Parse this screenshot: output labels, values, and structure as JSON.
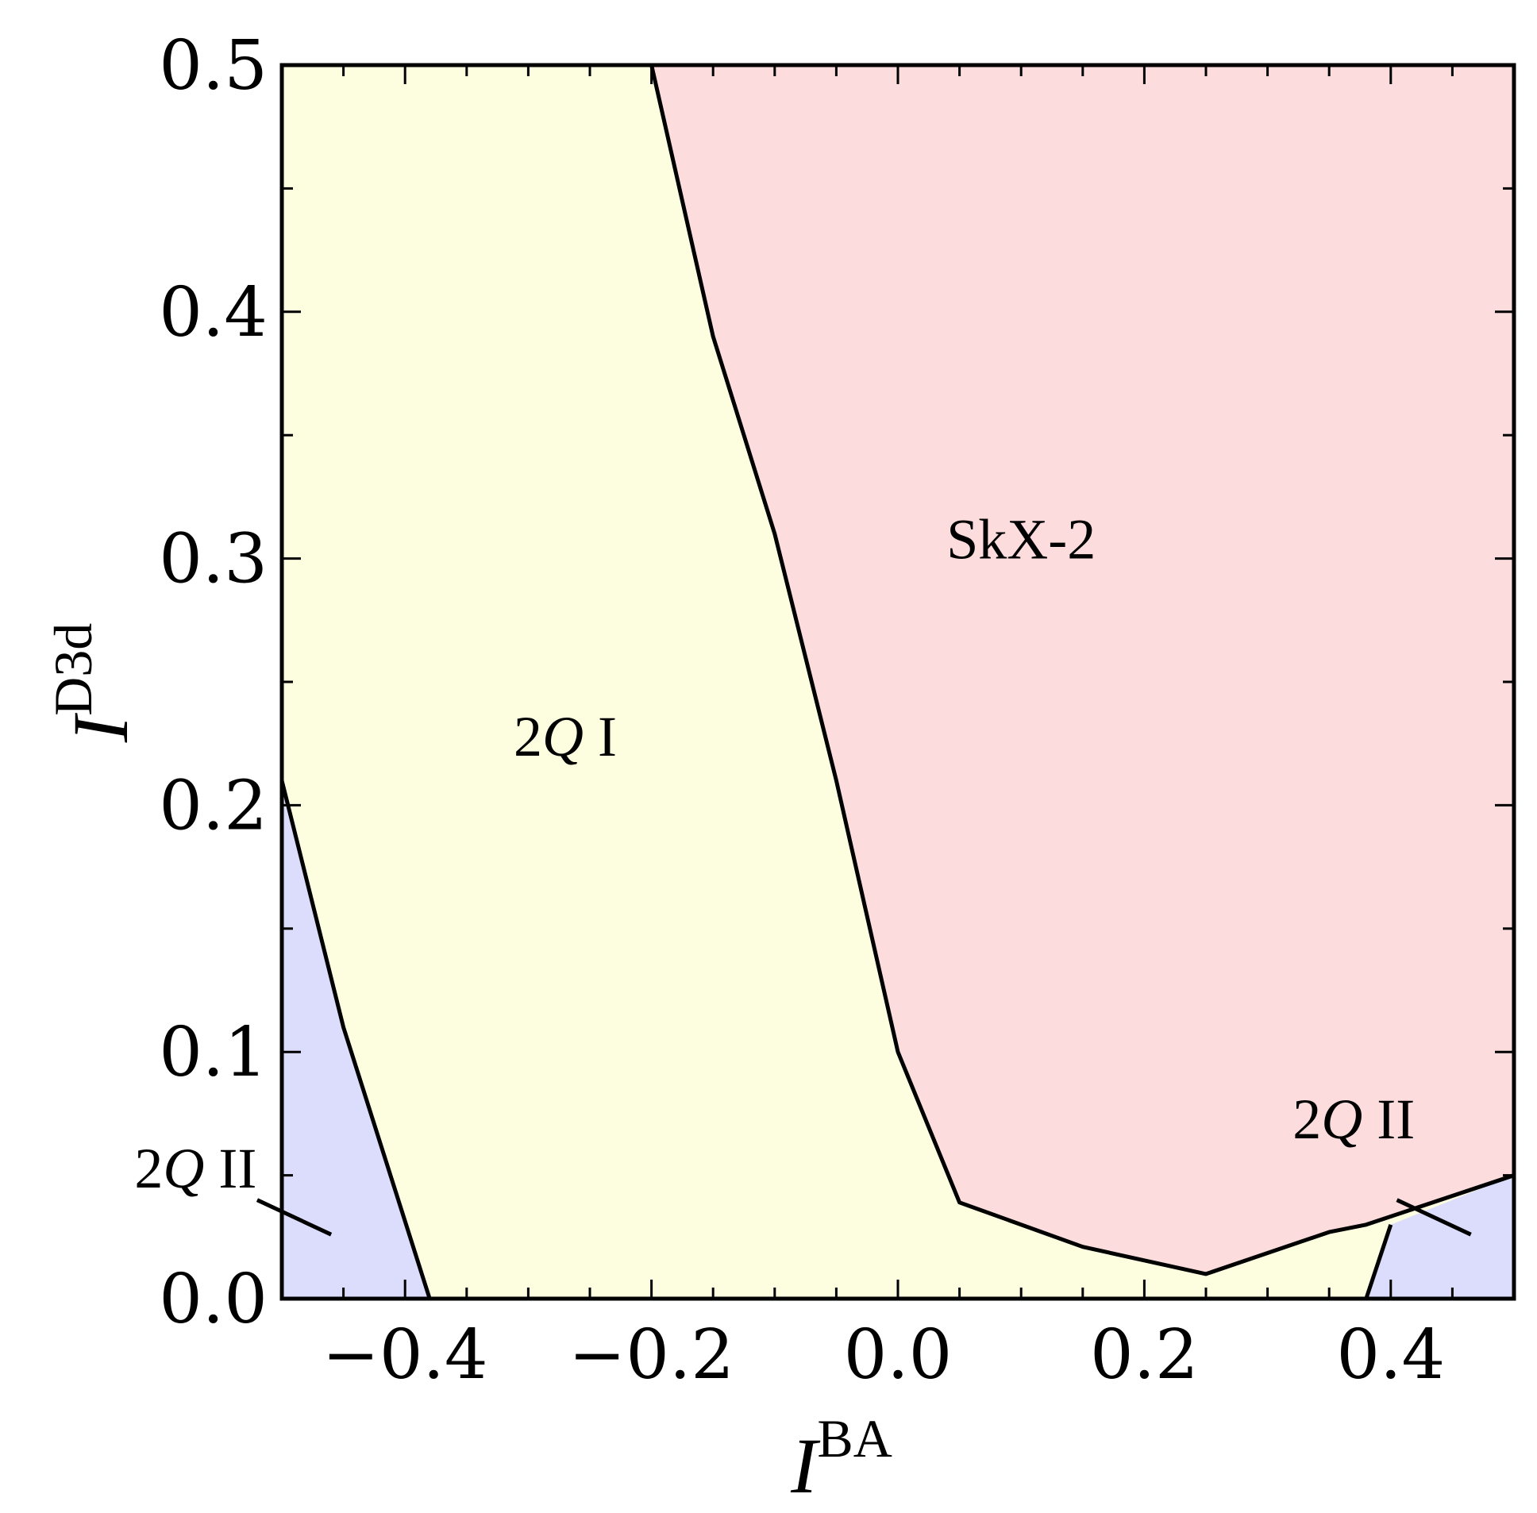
{
  "chart_data": {
    "type": "area",
    "xlabel": {
      "main": "I",
      "sup": "BA"
    },
    "ylabel": {
      "main": "I",
      "sup": "D3d"
    },
    "xlim": [
      -0.5,
      0.5
    ],
    "ylim": [
      0.0,
      0.5
    ],
    "xticks": [
      -0.4,
      -0.2,
      0.0,
      0.2,
      0.4
    ],
    "xtick_labels": [
      "−0.4",
      "−0.2",
      "0.0",
      "0.2",
      "0.4"
    ],
    "yticks": [
      0.0,
      0.1,
      0.2,
      0.3,
      0.4,
      0.5
    ],
    "ytick_labels": [
      "0.0",
      "0.1",
      "0.2",
      "0.3",
      "0.4",
      "0.5"
    ],
    "x_minor_step": 0.05,
    "y_minor_step": 0.05,
    "grid": false,
    "colors": {
      "skx2": "#fcdcdc",
      "twoq1": "#fdfde0",
      "twoq2": "#dcdcfc",
      "line": "#000000"
    },
    "boundaries": {
      "twoq1_skx2": [
        [
          -0.2,
          0.5
        ],
        [
          -0.15,
          0.39
        ],
        [
          -0.1,
          0.31
        ],
        [
          -0.05,
          0.21
        ],
        [
          0.0,
          0.1
        ],
        [
          0.05,
          0.039
        ],
        [
          0.15,
          0.021
        ],
        [
          0.25,
          0.01
        ],
        [
          0.35,
          0.027
        ],
        [
          0.38,
          0.03
        ],
        [
          0.5,
          0.05
        ]
      ],
      "twoq2_left": [
        [
          -0.5,
          0.21
        ],
        [
          -0.45,
          0.11
        ],
        [
          -0.38,
          0.0
        ]
      ],
      "twoq2_right": [
        [
          0.38,
          0.0
        ],
        [
          0.4,
          0.03
        ]
      ]
    },
    "regions": [
      {
        "name": "SkX-2",
        "main": "SkX-2",
        "x": 0.1,
        "y": 0.3
      },
      {
        "name": "2Q I",
        "main": "2",
        "italic": "Q",
        "tail": " I",
        "x": -0.27,
        "y": 0.22
      },
      {
        "name": "2Q II left",
        "main": "2",
        "italic": "Q",
        "tail": " II",
        "x": -0.57,
        "y": 0.045,
        "pointer": [
          [
            -0.52,
            0.04
          ],
          [
            -0.46,
            0.026
          ]
        ]
      },
      {
        "name": "2Q II right",
        "main": "2",
        "italic": "Q",
        "tail": " II",
        "x": 0.37,
        "y": 0.065,
        "pointer": [
          [
            0.405,
            0.04
          ],
          [
            0.465,
            0.026
          ]
        ]
      }
    ]
  }
}
